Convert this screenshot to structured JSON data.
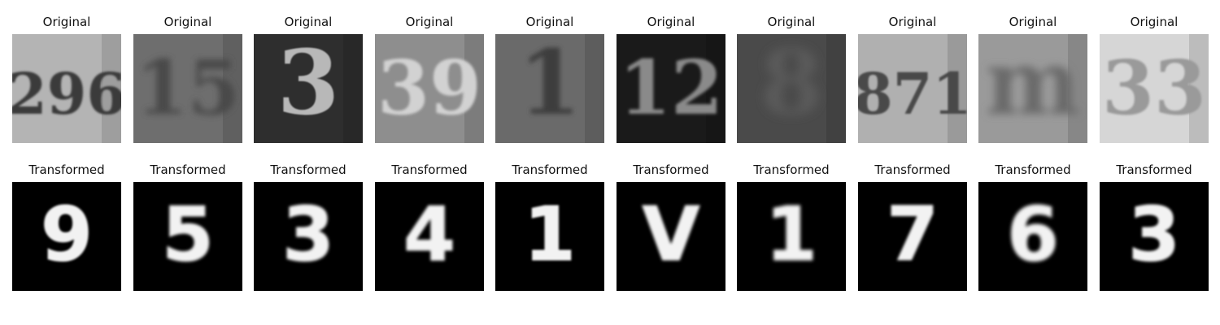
{
  "panels": {
    "original": [
      {
        "title": "Original",
        "bg": "#b4b4b4",
        "fg": "#3a3a3a",
        "glyph": "296",
        "blur": 1.2
      },
      {
        "title": "Original",
        "bg": "#6e6e6e",
        "fg": "#4a4a4a",
        "glyph": "15",
        "blur": 4
      },
      {
        "title": "Original",
        "bg": "#2e2e2e",
        "fg": "#b8b8b8",
        "glyph": "3",
        "blur": 0.8
      },
      {
        "title": "Original",
        "bg": "#8e8e8e",
        "fg": "#d2d2d2",
        "glyph": "39",
        "blur": 1.5
      },
      {
        "title": "Original",
        "bg": "#6a6a6a",
        "fg": "#3c3c3c",
        "glyph": "1",
        "blur": 3
      },
      {
        "title": "Original",
        "bg": "#1a1a1a",
        "fg": "#8a8a8a",
        "glyph": "12",
        "blur": 1.8
      },
      {
        "title": "Original",
        "bg": "#4a4a4a",
        "fg": "#5a5a5a",
        "glyph": "8",
        "blur": 6
      },
      {
        "title": "Original",
        "bg": "#b0b0b0",
        "fg": "#4a4a4a",
        "glyph": "871",
        "blur": 1
      },
      {
        "title": "Original",
        "bg": "#9a9a9a",
        "fg": "#6a6a6a",
        "glyph": "m",
        "blur": 5
      },
      {
        "title": "Original",
        "bg": "#d6d6d6",
        "fg": "#9a9a9a",
        "glyph": "33",
        "blur": 1.2
      }
    ],
    "transformed": [
      {
        "title": "Transformed",
        "glyph": "9",
        "blur": 1.2
      },
      {
        "title": "Transformed",
        "glyph": "5",
        "blur": 1.8
      },
      {
        "title": "Transformed",
        "glyph": "3",
        "blur": 1.8
      },
      {
        "title": "Transformed",
        "glyph": "4",
        "blur": 1.8
      },
      {
        "title": "Transformed",
        "glyph": "1",
        "blur": 1.2
      },
      {
        "title": "Transformed",
        "glyph": "V",
        "blur": 1.8
      },
      {
        "title": "Transformed",
        "glyph": "1",
        "blur": 2.2
      },
      {
        "title": "Transformed",
        "glyph": "7",
        "blur": 1.6
      },
      {
        "title": "Transformed",
        "glyph": "6",
        "blur": 2
      },
      {
        "title": "Transformed",
        "glyph": "3",
        "blur": 1.6
      }
    ]
  }
}
